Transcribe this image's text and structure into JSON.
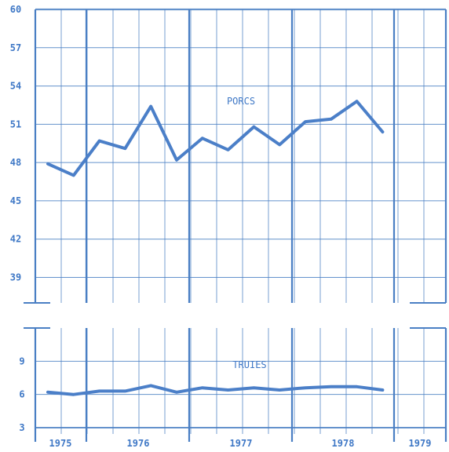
{
  "colors": {
    "grid": "#4a7fc4",
    "text": "#3f78c6",
    "line": "#4b7fc8",
    "background": "#ffffff"
  },
  "chart_data": [
    {
      "type": "line",
      "series": [
        {
          "name": "PORCS",
          "values": [
            47.9,
            47.0,
            49.7,
            49.1,
            52.4,
            48.2,
            49.9,
            49.0,
            50.8,
            49.4,
            51.2,
            51.4,
            52.8,
            50.4
          ]
        }
      ],
      "x": [
        1975.0,
        1975.33,
        1975.67,
        1976.0,
        1976.33,
        1976.67,
        1977.0,
        1977.33,
        1977.67,
        1978.0,
        1978.33,
        1978.67,
        1979.0,
        1979.33
      ],
      "ylim": [
        37,
        60
      ],
      "yticks": [
        39,
        42,
        45,
        48,
        51,
        54,
        57,
        60
      ],
      "ytick_labels": [
        "39",
        "42",
        "45",
        "48",
        "51",
        "54",
        "57",
        "60"
      ],
      "grid": true
    },
    {
      "type": "line",
      "series": [
        {
          "name": "TRUIES",
          "values": [
            6.2,
            6.0,
            6.3,
            6.3,
            6.8,
            6.2,
            6.6,
            6.4,
            6.6,
            6.4,
            6.6,
            6.7,
            6.7,
            6.4
          ]
        }
      ],
      "x": [
        1975.0,
        1975.33,
        1975.67,
        1976.0,
        1976.33,
        1976.67,
        1977.0,
        1977.33,
        1977.67,
        1978.0,
        1978.33,
        1978.67,
        1979.0,
        1979.33
      ],
      "ylim": [
        3,
        12
      ],
      "yticks": [
        3,
        6,
        9
      ],
      "ytick_labels": [
        "3",
        "6",
        "9"
      ],
      "grid": true
    }
  ],
  "x_axis": {
    "year_labels": [
      "1975",
      "1976",
      "1977",
      "1978",
      "1979"
    ]
  }
}
